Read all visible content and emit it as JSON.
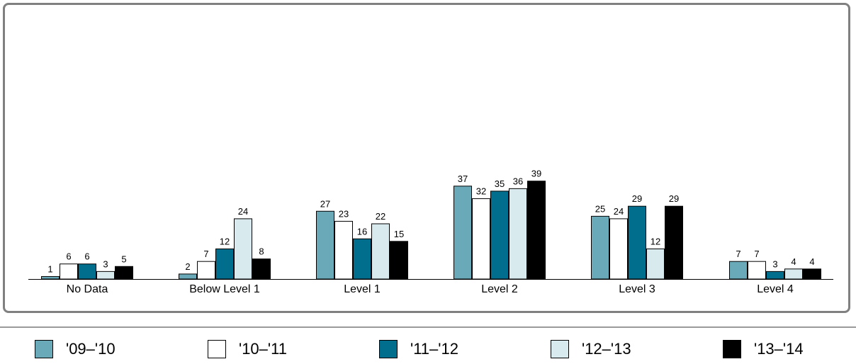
{
  "chart_data": {
    "type": "bar",
    "categories": [
      "No Data",
      "Below Level 1",
      "Level 1",
      "Level 2",
      "Level 3",
      "Level 4"
    ],
    "series": [
      {
        "name": "'09–'10",
        "color": "#6aa9b8",
        "values": [
          1,
          2,
          27,
          37,
          25,
          7
        ]
      },
      {
        "name": "'10–'11",
        "color": "#ffffff",
        "values": [
          6,
          7,
          23,
          32,
          24,
          7
        ]
      },
      {
        "name": "'11–'12",
        "color": "#006e8c",
        "values": [
          6,
          12,
          16,
          35,
          29,
          3
        ]
      },
      {
        "name": "'12–'13",
        "color": "#d9eaef",
        "values": [
          3,
          24,
          22,
          36,
          12,
          4
        ]
      },
      {
        "name": "'13–'14",
        "color": "#000000",
        "values": [
          5,
          8,
          15,
          39,
          29,
          4
        ]
      }
    ],
    "ylim": [
      0,
      110
    ],
    "grid": false,
    "legend_position": "bottom",
    "data_labels": true
  }
}
